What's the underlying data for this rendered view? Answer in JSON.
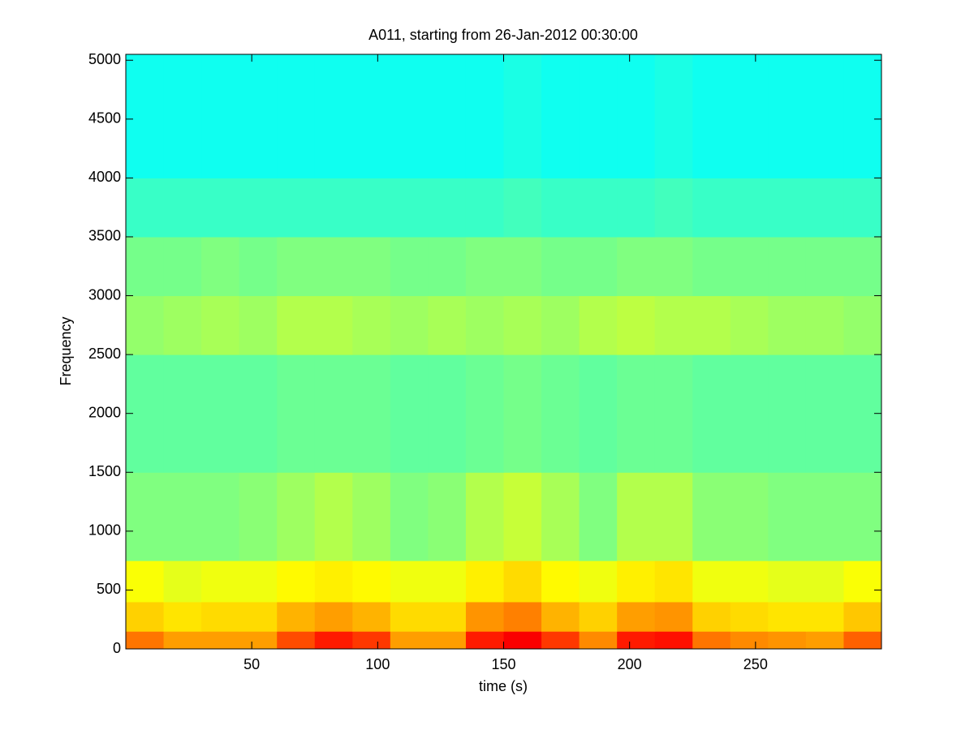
{
  "chart_data": {
    "type": "heatmap",
    "title": "A011, starting from 26-Jan-2012 00:30:00",
    "x_label": "time (s)",
    "y_label": "Frequency",
    "colormap": "jet",
    "xlim": [
      0,
      300
    ],
    "ylim": [
      0,
      5050
    ],
    "xticks": [
      50,
      100,
      150,
      200,
      250
    ],
    "yticks": [
      0,
      500,
      1000,
      1500,
      2000,
      2500,
      3000,
      3500,
      4000,
      4500,
      5000
    ],
    "x_bins": [
      0,
      15,
      30,
      45,
      60,
      75,
      90,
      105,
      120,
      135,
      150,
      165,
      180,
      195,
      210,
      225,
      240,
      255,
      270,
      285,
      300
    ],
    "y_bins": [
      0,
      150,
      400,
      750,
      1500,
      2500,
      3000,
      3500,
      4000,
      5050
    ],
    "values": [
      [
        0.76,
        0.72,
        0.72,
        0.72,
        0.8,
        0.85,
        0.82,
        0.72,
        0.72,
        0.85,
        0.88,
        0.82,
        0.74,
        0.85,
        0.86,
        0.76,
        0.74,
        0.73,
        0.72,
        0.78
      ],
      [
        0.67,
        0.65,
        0.66,
        0.66,
        0.7,
        0.72,
        0.7,
        0.66,
        0.66,
        0.73,
        0.75,
        0.7,
        0.67,
        0.72,
        0.73,
        0.67,
        0.66,
        0.65,
        0.65,
        0.68
      ],
      [
        0.62,
        0.6,
        0.61,
        0.61,
        0.63,
        0.64,
        0.63,
        0.61,
        0.61,
        0.64,
        0.66,
        0.63,
        0.61,
        0.64,
        0.65,
        0.61,
        0.61,
        0.6,
        0.6,
        0.62
      ],
      [
        0.5,
        0.5,
        0.5,
        0.51,
        0.53,
        0.55,
        0.53,
        0.5,
        0.51,
        0.55,
        0.57,
        0.54,
        0.5,
        0.55,
        0.55,
        0.51,
        0.51,
        0.5,
        0.5,
        0.5
      ],
      [
        0.47,
        0.47,
        0.47,
        0.47,
        0.48,
        0.48,
        0.48,
        0.47,
        0.47,
        0.48,
        0.49,
        0.48,
        0.47,
        0.48,
        0.48,
        0.47,
        0.47,
        0.47,
        0.47,
        0.47
      ],
      [
        0.52,
        0.53,
        0.54,
        0.53,
        0.55,
        0.55,
        0.54,
        0.53,
        0.54,
        0.53,
        0.54,
        0.53,
        0.55,
        0.56,
        0.55,
        0.55,
        0.54,
        0.53,
        0.53,
        0.52
      ],
      [
        0.49,
        0.49,
        0.5,
        0.49,
        0.5,
        0.5,
        0.5,
        0.49,
        0.49,
        0.5,
        0.5,
        0.49,
        0.49,
        0.5,
        0.5,
        0.49,
        0.49,
        0.49,
        0.49,
        0.49
      ],
      [
        0.43,
        0.43,
        0.43,
        0.43,
        0.43,
        0.43,
        0.43,
        0.43,
        0.43,
        0.43,
        0.44,
        0.43,
        0.43,
        0.43,
        0.44,
        0.43,
        0.43,
        0.43,
        0.43,
        0.43
      ],
      [
        0.39,
        0.39,
        0.39,
        0.39,
        0.39,
        0.39,
        0.39,
        0.39,
        0.39,
        0.39,
        0.4,
        0.39,
        0.39,
        0.39,
        0.4,
        0.39,
        0.39,
        0.39,
        0.39,
        0.39
      ]
    ]
  }
}
